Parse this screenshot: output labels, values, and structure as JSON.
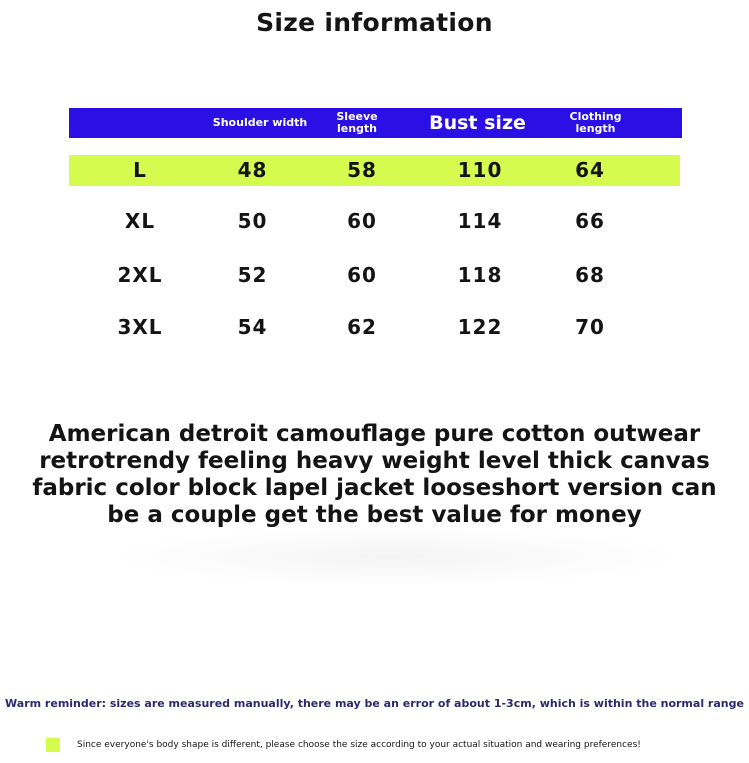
{
  "title": "Size information",
  "colors": {
    "header_bg": "#2b10e6",
    "header_text": "#ffffff",
    "highlight_row": "#d6fb4f",
    "reminder_text": "#2a2a6e",
    "body_text": "#141414"
  },
  "table": {
    "headers": {
      "size": "",
      "shoulder": "Shoulder width",
      "sleeve": "Sleeve length",
      "bust": "Bust size",
      "clothing": "Clothing length"
    },
    "rows": [
      {
        "size": "L",
        "shoulder": "48",
        "sleeve": "58",
        "bust": "110",
        "clothing": "64"
      },
      {
        "size": "XL",
        "shoulder": "50",
        "sleeve": "60",
        "bust": "114",
        "clothing": "66"
      },
      {
        "size": "2XL",
        "shoulder": "52",
        "sleeve": "60",
        "bust": "118",
        "clothing": "68"
      },
      {
        "size": "3XL",
        "shoulder": "54",
        "sleeve": "62",
        "bust": "122",
        "clothing": "70"
      }
    ]
  },
  "description": "American detroit camouflage pure cotton outwear retrotrendy feeling heavy weight level thick canvas fabric color block lapel jacket looseshort version can be a couple get the best value for money",
  "reminder": "Warm reminder: sizes are measured manually, there may be an error of about 1-3cm, which is within the normal range",
  "note": "Since everyone's body shape is different, please choose the size according to your actual situation and wearing preferences!"
}
